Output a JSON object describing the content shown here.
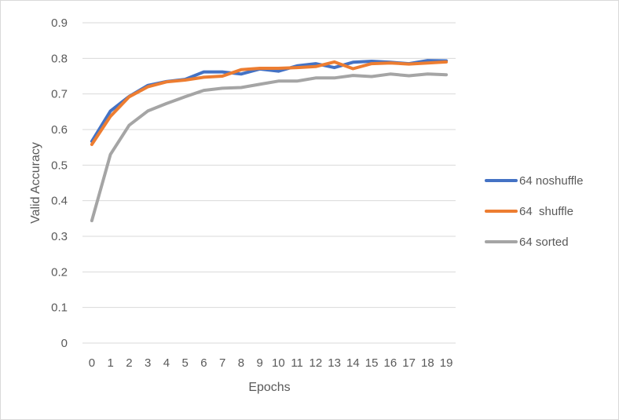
{
  "chart_data": {
    "type": "line",
    "title": "",
    "xlabel": "Epochs",
    "ylabel": "Valid Accuracy",
    "x": [
      0,
      1,
      2,
      3,
      4,
      5,
      6,
      7,
      8,
      9,
      10,
      11,
      12,
      13,
      14,
      15,
      16,
      17,
      18,
      19
    ],
    "yticks": [
      "0",
      "0.1",
      "0.2",
      "0.3",
      "0.4",
      "0.5",
      "0.6",
      "0.7",
      "0.8",
      "0.9"
    ],
    "ylim": [
      0,
      0.9
    ],
    "grid": true,
    "legend_position": "right",
    "series": [
      {
        "name": "64 noshuffle",
        "color": "#4472C4",
        "values": [
          0.567,
          0.652,
          0.693,
          0.724,
          0.735,
          0.741,
          0.762,
          0.762,
          0.756,
          0.77,
          0.764,
          0.779,
          0.785,
          0.774,
          0.789,
          0.792,
          0.789,
          0.785,
          0.794,
          0.793
        ]
      },
      {
        "name": "64  shuffle",
        "color": "#ED7D31",
        "values": [
          0.558,
          0.637,
          0.692,
          0.72,
          0.734,
          0.739,
          0.747,
          0.75,
          0.768,
          0.772,
          0.772,
          0.774,
          0.777,
          0.79,
          0.771,
          0.785,
          0.787,
          0.784,
          0.787,
          0.79
        ]
      },
      {
        "name": "64 sorted",
        "color": "#A5A5A5",
        "values": [
          0.344,
          0.53,
          0.612,
          0.652,
          0.673,
          0.692,
          0.71,
          0.716,
          0.718,
          0.727,
          0.736,
          0.736,
          0.745,
          0.745,
          0.752,
          0.749,
          0.756,
          0.751,
          0.756,
          0.754
        ]
      }
    ]
  }
}
